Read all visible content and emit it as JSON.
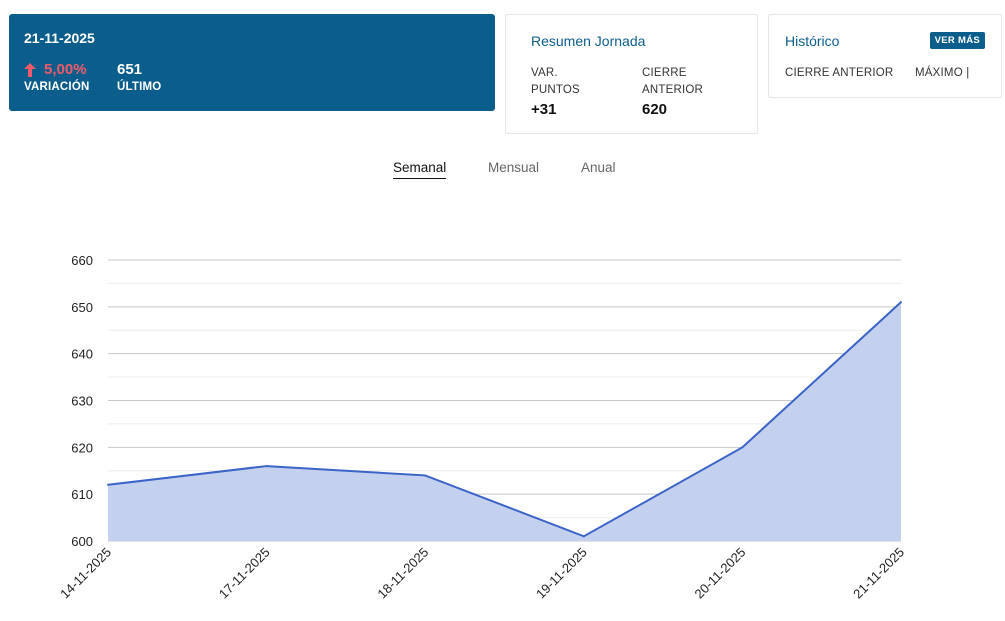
{
  "summary": {
    "date": "21-11-2025",
    "change_pct": "5,00%",
    "change_label": "VARIACIÓN",
    "last_value": "651",
    "last_label": "ÚLTIMO"
  },
  "jornada": {
    "title": "Resumen Jornada",
    "var_label_line1": "VAR.",
    "var_label_line2": "PUNTOS",
    "var_value": "+31",
    "cierre_label_line1": "CIERRE",
    "cierre_label_line2": "ANTERIOR",
    "cierre_value": "620"
  },
  "historico": {
    "title": "Histórico",
    "button": "VER MÁS",
    "col1": "CIERRE ANTERIOR",
    "col2": "MÁXIMO |"
  },
  "tabs": {
    "weekly": "Semanal",
    "monthly": "Mensual",
    "yearly": "Anual"
  },
  "colors": {
    "brand": "#0b5e8c",
    "negative_text": "#f05b6a",
    "line": "#3a64c8",
    "fill": "#c3d1ee"
  },
  "chart_data": {
    "type": "area",
    "categories": [
      "14-11-2025",
      "17-11-2025",
      "18-11-2025",
      "19-11-2025",
      "20-11-2025",
      "21-11-2025"
    ],
    "values": [
      612,
      616,
      614,
      601,
      620,
      651
    ],
    "ylim": [
      600,
      660
    ],
    "yticks": [
      600,
      610,
      620,
      630,
      640,
      650,
      660
    ],
    "title": "",
    "xlabel": "",
    "ylabel": ""
  }
}
